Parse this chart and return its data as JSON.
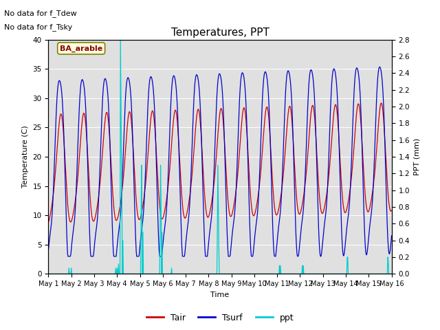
{
  "title": "Temperatures, PPT",
  "xlabel": "Time",
  "ylabel_left": "Temperature (C)",
  "ylabel_right": "PPT (mm)",
  "bg_color": "#e0e0e0",
  "fig_bg": "#ffffff",
  "annotation1": "No data for f_Tdew",
  "annotation2": "No data for f_Tsky",
  "box_label": "BA_arable",
  "ylim_left": [
    0,
    40
  ],
  "ylim_right": [
    0.0,
    2.8
  ],
  "yticks_left": [
    0,
    5,
    10,
    15,
    20,
    25,
    30,
    35,
    40
  ],
  "yticks_right": [
    0.0,
    0.2,
    0.4,
    0.6,
    0.8,
    1.0,
    1.2,
    1.4,
    1.6,
    1.8,
    2.0,
    2.2,
    2.4,
    2.6,
    2.8
  ],
  "xtick_labels": [
    "May 1",
    "May 2",
    "May 3",
    "May 4",
    "May 5",
    "May 6",
    "May 7",
    "May 8",
    "May 9",
    "May 10",
    "May 11",
    "May 12",
    "May 13",
    "May 14",
    "May 15",
    "May 16"
  ],
  "legend_entries": [
    "Tair",
    "Tsurf",
    "ppt"
  ],
  "legend_colors": [
    "#cc0000",
    "#0000cc",
    "#00cccc"
  ]
}
